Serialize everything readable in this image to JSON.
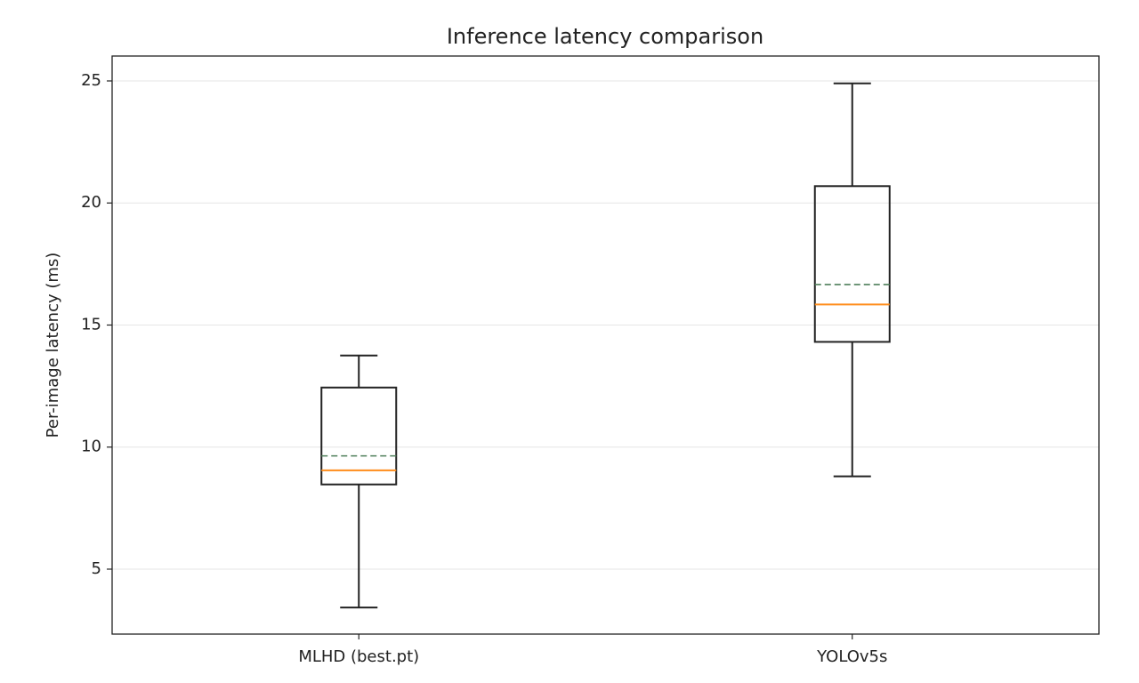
{
  "chart_data": {
    "type": "box",
    "title": "Inference latency comparison",
    "y_label": "Per-image latency (ms)",
    "categories": [
      "MLHD (best.pt)",
      "YOLOv5s"
    ],
    "whislo": [
      3.43,
      8.8
    ],
    "q1": [
      8.47,
      14.31
    ],
    "med": [
      9.05,
      15.84
    ],
    "mean": [
      9.64,
      16.66
    ],
    "q3": [
      12.44,
      20.69
    ],
    "whishi": [
      13.75,
      24.9
    ],
    "box_color": "#222222",
    "median_color": "#ff8c1a",
    "mean_color": "#4f7f5a",
    "ylim": [
      2.34,
      26.02
    ],
    "yticks": [
      5,
      10,
      15,
      20,
      25
    ],
    "grid": true
  }
}
